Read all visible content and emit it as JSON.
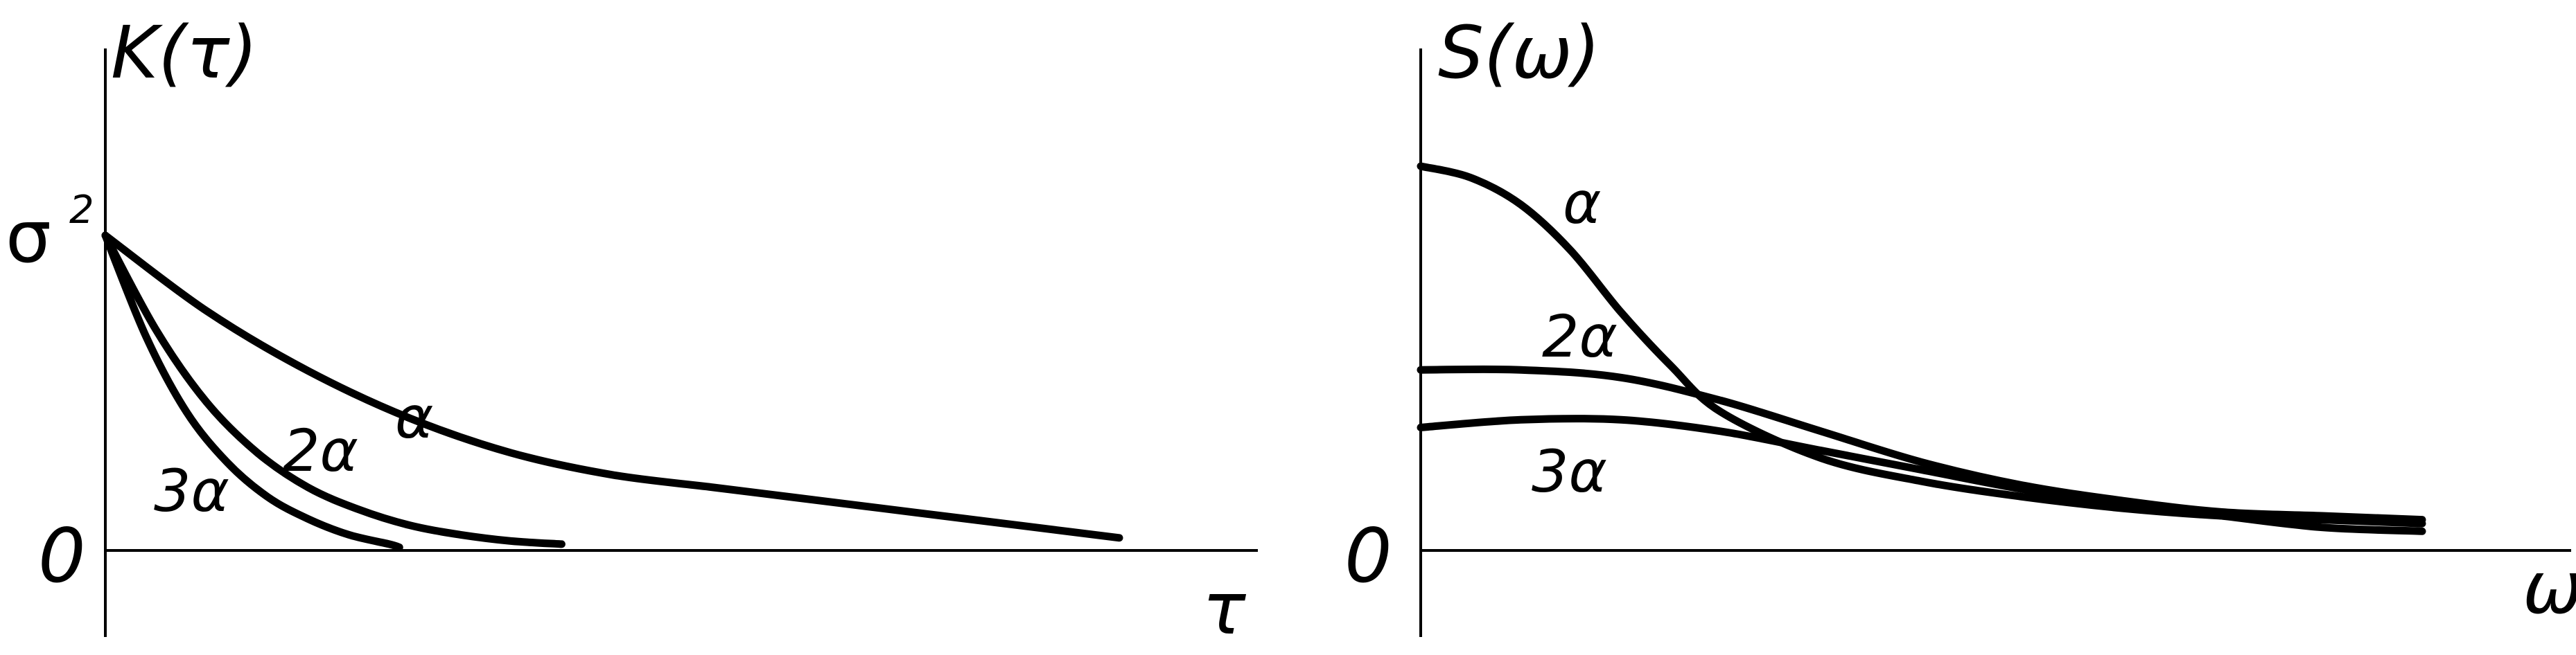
{
  "chart_data": [
    {
      "type": "line",
      "ylabel": "K(τ)",
      "xlabel": "τ",
      "origin_label": "0",
      "y_tick_label": "σ",
      "y_tick_sup": "2",
      "series": [
        {
          "name": "α",
          "x": [
            0,
            0.1,
            0.2,
            0.3,
            0.4,
            0.5,
            0.6,
            0.7,
            0.8,
            0.9,
            1.0
          ],
          "values": [
            1.0,
            0.76,
            0.57,
            0.42,
            0.31,
            0.24,
            0.2,
            0.16,
            0.12,
            0.08,
            0.04
          ]
        },
        {
          "name": "2α",
          "x": [
            0,
            0.05,
            0.1,
            0.15,
            0.2,
            0.25,
            0.3,
            0.35,
            0.4,
            0.45
          ],
          "values": [
            1.0,
            0.7,
            0.47,
            0.31,
            0.2,
            0.13,
            0.08,
            0.05,
            0.03,
            0.02
          ]
        },
        {
          "name": "3α",
          "x": [
            0,
            0.04,
            0.08,
            0.12,
            0.16,
            0.2,
            0.24,
            0.28,
            0.29
          ],
          "values": [
            1.0,
            0.68,
            0.44,
            0.28,
            0.17,
            0.1,
            0.05,
            0.02,
            0.01
          ]
        }
      ],
      "xlim": [
        0,
        1.0
      ],
      "ylim": [
        0,
        1.3
      ]
    },
    {
      "type": "line",
      "ylabel": "S(ω)",
      "xlabel": "ω",
      "origin_label": "0",
      "series": [
        {
          "name": "α",
          "x": [
            0,
            0.05,
            0.1,
            0.15,
            0.2,
            0.25,
            0.3,
            0.4,
            0.5,
            0.6,
            0.7,
            0.8,
            0.9,
            1.0
          ],
          "values": [
            1.0,
            0.97,
            0.9,
            0.78,
            0.62,
            0.48,
            0.36,
            0.24,
            0.18,
            0.14,
            0.11,
            0.09,
            0.08,
            0.07
          ]
        },
        {
          "name": "2α",
          "x": [
            0,
            0.1,
            0.2,
            0.3,
            0.4,
            0.5,
            0.6,
            0.7,
            0.8,
            0.9,
            1.0
          ],
          "values": [
            0.47,
            0.47,
            0.45,
            0.39,
            0.31,
            0.23,
            0.17,
            0.13,
            0.1,
            0.09,
            0.08
          ]
        },
        {
          "name": "3α",
          "x": [
            0,
            0.1,
            0.2,
            0.3,
            0.4,
            0.5,
            0.6,
            0.7,
            0.8,
            0.9,
            1.0
          ],
          "values": [
            0.32,
            0.34,
            0.34,
            0.31,
            0.26,
            0.21,
            0.16,
            0.12,
            0.09,
            0.06,
            0.05
          ]
        }
      ],
      "xlim": [
        0,
        1.0
      ],
      "ylim": [
        0,
        1.3
      ]
    }
  ]
}
